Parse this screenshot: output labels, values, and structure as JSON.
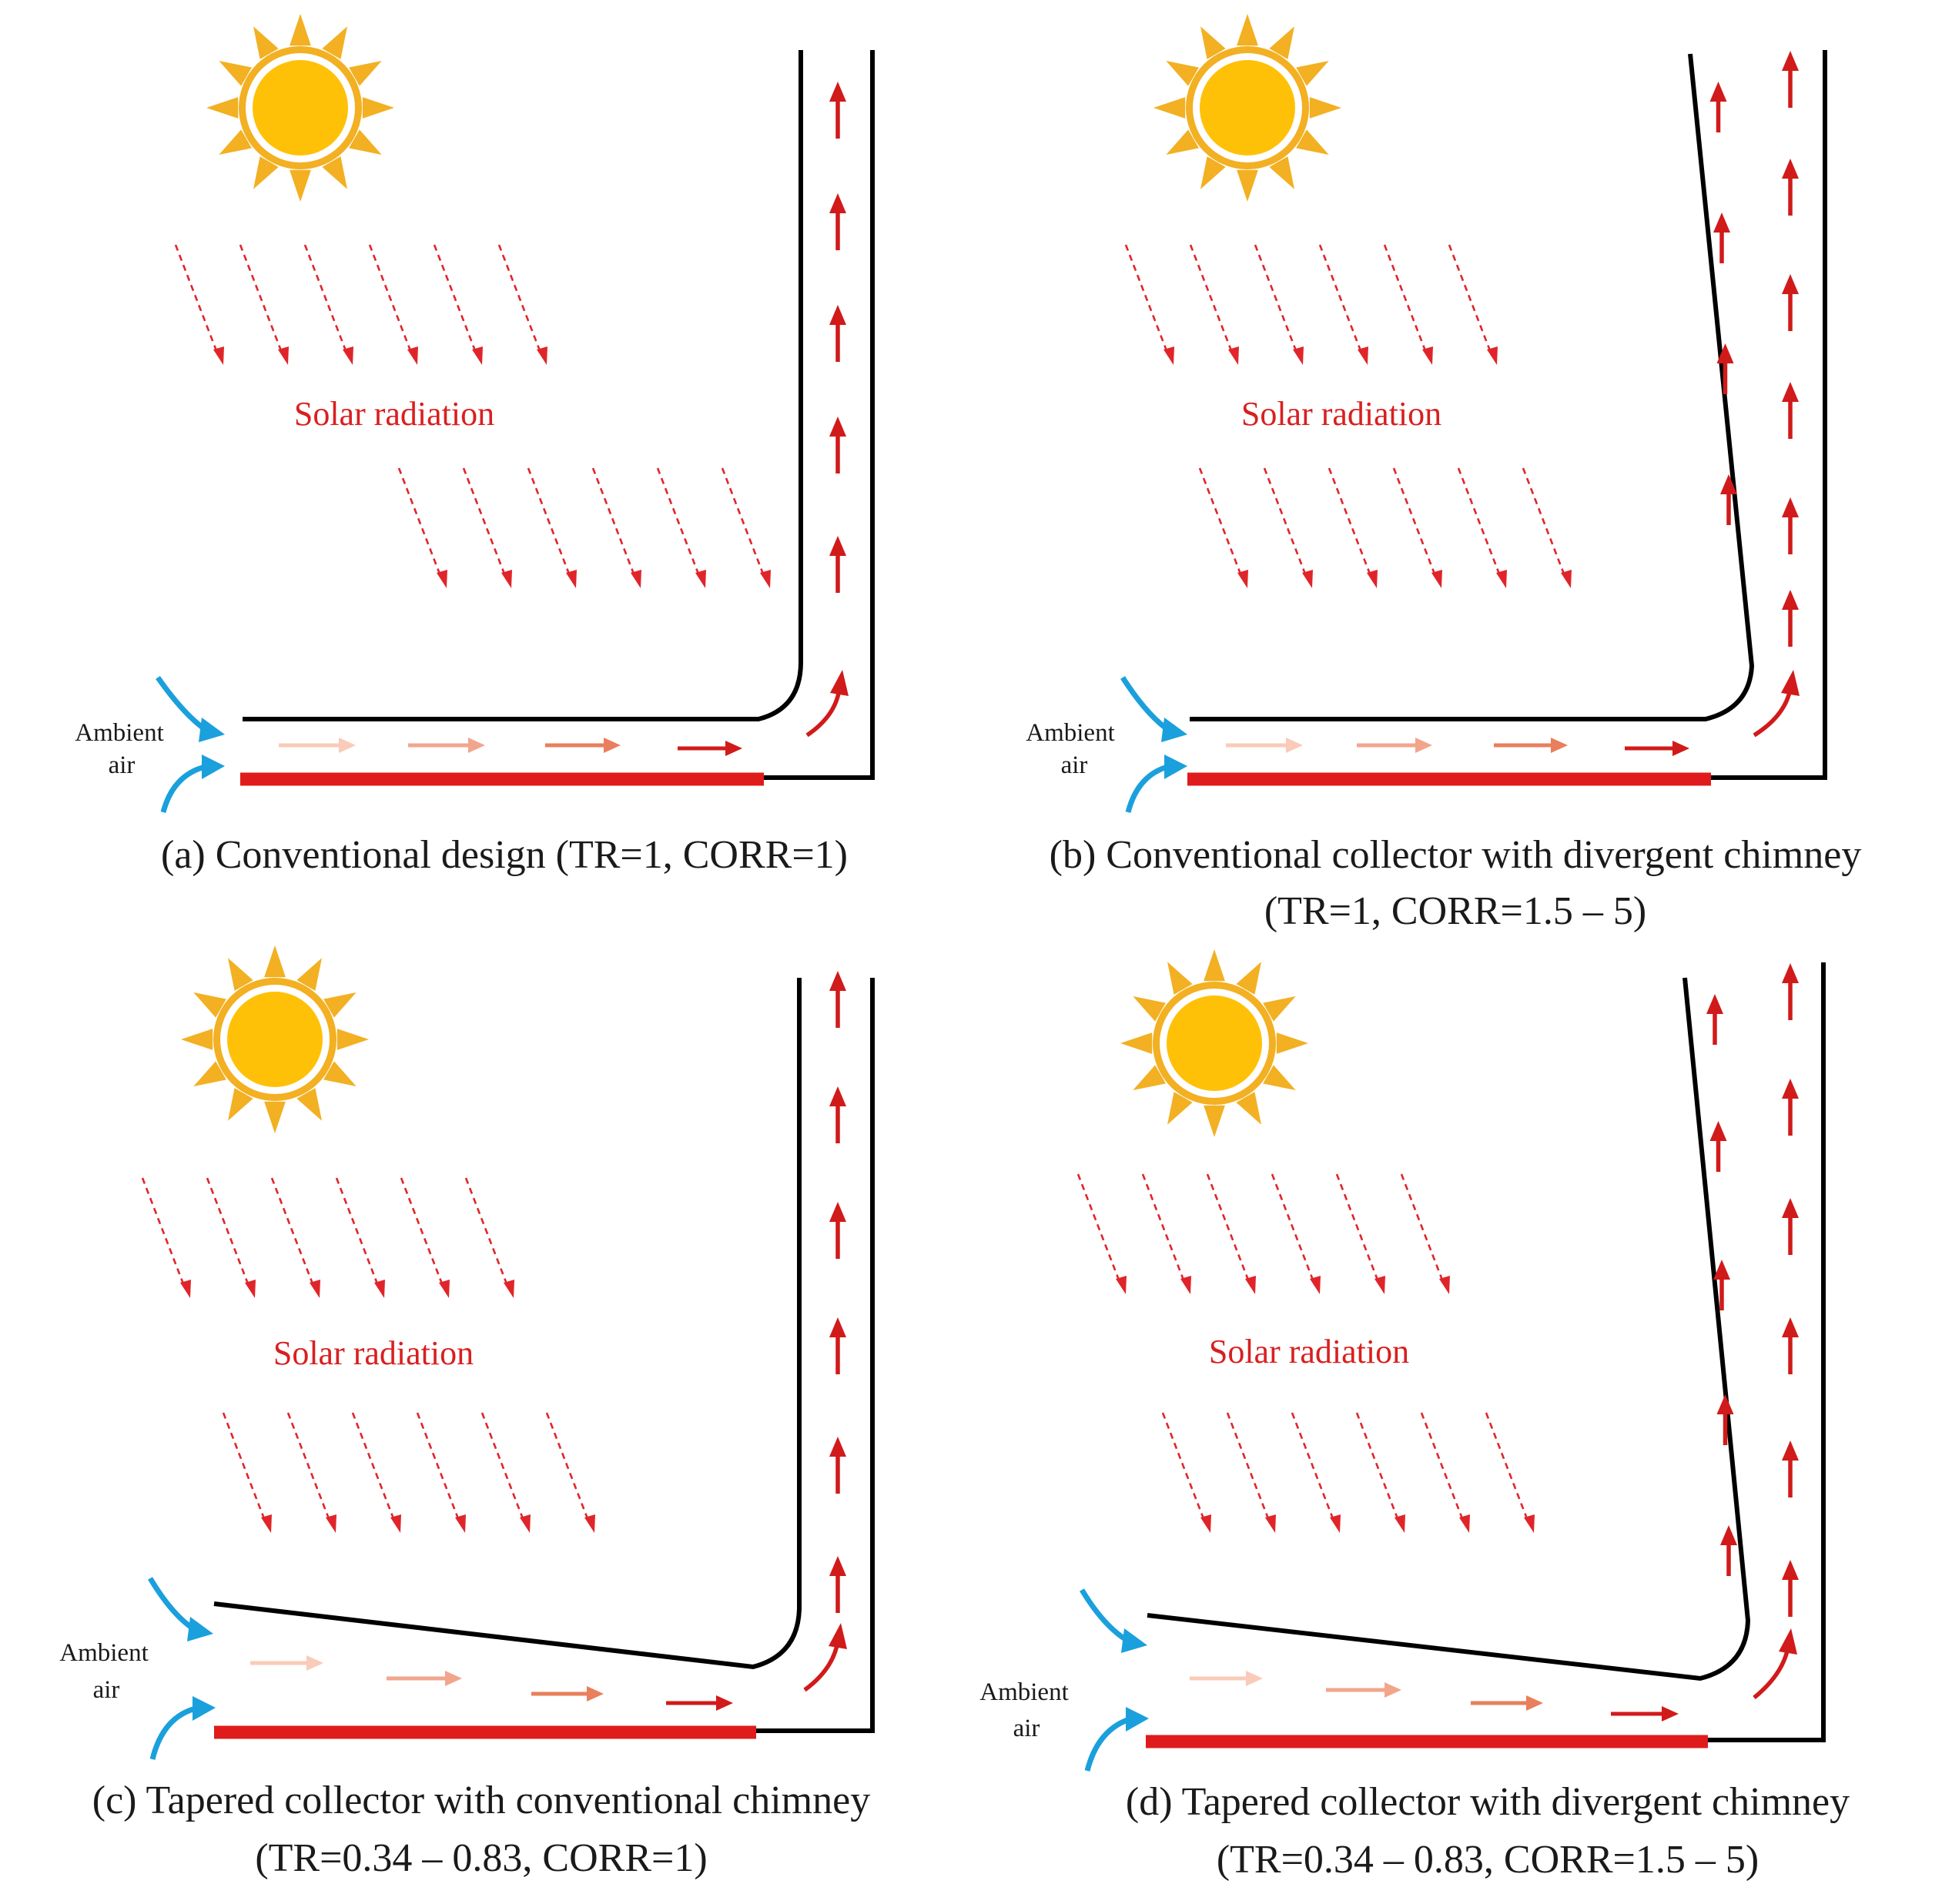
{
  "colors": {
    "sun_core": "#FFC107",
    "sun_ray": "#F2B022",
    "radiation": "#E0252A",
    "airflow_hot": "#D11A1A",
    "airflow_cool": "#F9CBB8",
    "ambient_air": "#1AA0DC",
    "absorber": "#E01B1B",
    "walls": "#000000"
  },
  "icons": [
    "sun-icon",
    "radiation-arrow-icon",
    "airflow-arrow-icon",
    "ambient-air-arrow-icon"
  ],
  "panels": [
    {
      "id": "a",
      "radiation_label": "Solar radiation",
      "ambient_label_line1": "Ambient",
      "ambient_label_line2": "air",
      "caption_line1": "(a) Conventional design (TR=1, CORR=1)",
      "caption_line2": ""
    },
    {
      "id": "b",
      "radiation_label": "Solar radiation",
      "ambient_label_line1": "Ambient",
      "ambient_label_line2": "air",
      "caption_line1": "(b) Conventional collector with divergent chimney",
      "caption_line2": "(TR=1, CORR=1.5 – 5)"
    },
    {
      "id": "c",
      "radiation_label": "Solar radiation",
      "ambient_label_line1": "Ambient",
      "ambient_label_line2": "air",
      "caption_line1": "(c) Tapered collector with conventional chimney",
      "caption_line2": "(TR=0.34 – 0.83, CORR=1)"
    },
    {
      "id": "d",
      "radiation_label": "Solar radiation",
      "ambient_label_line1": "Ambient",
      "ambient_label_line2": "air",
      "caption_line1": "(d) Tapered collector with divergent chimney",
      "caption_line2": "(TR=0.34 – 0.83, CORR=1.5 – 5)"
    }
  ]
}
